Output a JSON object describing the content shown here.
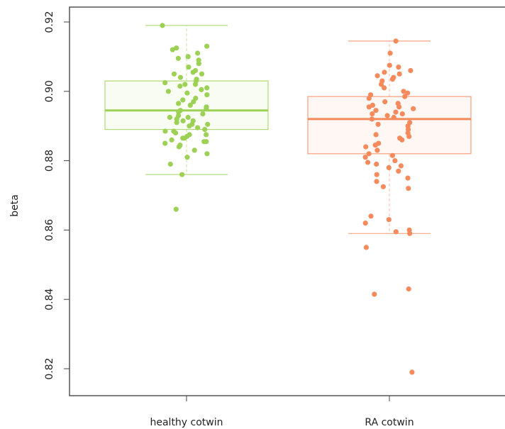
{
  "chart_data": {
    "type": "box",
    "title": "",
    "xlabel": "",
    "ylabel": "beta",
    "ylim": [
      0.814,
      0.922
    ],
    "yticks": [
      0.82,
      0.84,
      0.86,
      0.88,
      0.9,
      0.92
    ],
    "ytick_labels": [
      "0.82",
      "0.84",
      "0.86",
      "0.88",
      "0.90",
      "0.92"
    ],
    "categories": [
      "healthy cotwin",
      "RA cotwin"
    ],
    "grid": false,
    "legend": "none",
    "groups": [
      {
        "category": "healthy cotwin",
        "color": "#9dd155",
        "box_fill": "#f4faea",
        "whisker_low": 0.876,
        "q1": 0.889,
        "median": 0.8945,
        "q3": 0.903,
        "whisker_high": 0.919,
        "points": [
          0.919,
          0.913,
          0.9125,
          0.912,
          0.911,
          0.91,
          0.9095,
          0.909,
          0.908,
          0.907,
          0.906,
          0.9055,
          0.905,
          0.905,
          0.904,
          0.9035,
          0.903,
          0.9025,
          0.902,
          0.902,
          0.901,
          0.9005,
          0.9,
          0.8995,
          0.899,
          0.898,
          0.897,
          0.896,
          0.8955,
          0.895,
          0.8945,
          0.894,
          0.8935,
          0.893,
          0.8925,
          0.892,
          0.8915,
          0.891,
          0.8905,
          0.89,
          0.8895,
          0.889,
          0.8885,
          0.888,
          0.8875,
          0.887,
          0.8865,
          0.886,
          0.8855,
          0.885,
          0.8845,
          0.884,
          0.883,
          0.882,
          0.881,
          0.879,
          0.876,
          0.866,
          0.9015,
          0.8975,
          0.8965,
          0.8925,
          0.8905,
          0.8885,
          0.8875,
          0.8865,
          0.8855,
          0.8915
        ]
      },
      {
        "category": "RA cotwin",
        "color": "#f58a5c",
        "box_fill": "#fef1ec",
        "whisker_low": 0.859,
        "q1": 0.882,
        "median": 0.892,
        "q3": 0.8985,
        "whisker_high": 0.9145,
        "points": [
          0.9145,
          0.911,
          0.9075,
          0.907,
          0.906,
          0.9055,
          0.905,
          0.9045,
          0.904,
          0.903,
          0.902,
          0.901,
          0.9,
          0.8995,
          0.899,
          0.8985,
          0.898,
          0.897,
          0.896,
          0.8955,
          0.895,
          0.8945,
          0.894,
          0.8935,
          0.893,
          0.8925,
          0.892,
          0.891,
          0.89,
          0.889,
          0.888,
          0.887,
          0.886,
          0.885,
          0.884,
          0.883,
          0.882,
          0.881,
          0.88,
          0.879,
          0.8785,
          0.878,
          0.877,
          0.876,
          0.875,
          0.874,
          0.8725,
          0.872,
          0.864,
          0.863,
          0.862,
          0.86,
          0.8595,
          0.859,
          0.855,
          0.843,
          0.8415,
          0.819,
          0.9035,
          0.8965,
          0.8905,
          0.8875,
          0.8845,
          0.8815,
          0.8795,
          0.8935,
          0.8955,
          0.8865
        ]
      }
    ]
  }
}
